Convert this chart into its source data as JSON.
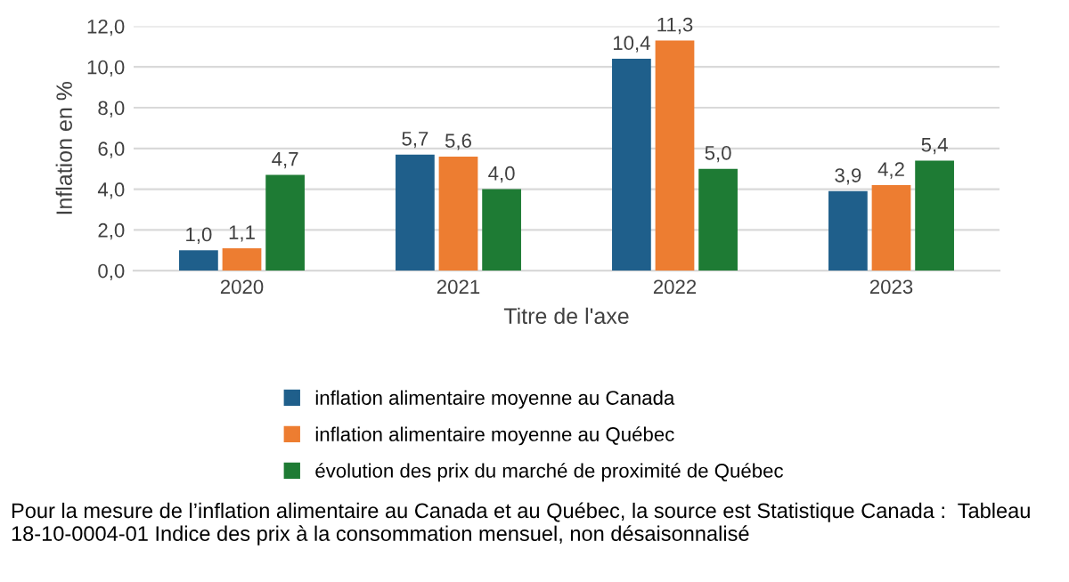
{
  "chart_data": {
    "type": "bar",
    "categories": [
      "2020",
      "2021",
      "2022",
      "2023"
    ],
    "series": [
      {
        "name": "inflation alimentaire moyenne au Canada",
        "color": "#1f5f8b",
        "values": [
          1.0,
          5.7,
          10.4,
          3.9
        ],
        "value_labels": [
          "1,0",
          "5,7",
          "10,4",
          "3,9"
        ]
      },
      {
        "name": "inflation alimentaire moyenne au Québec",
        "color": "#ed7d31",
        "values": [
          1.1,
          5.6,
          11.3,
          4.2
        ],
        "value_labels": [
          "1,1",
          "5,6",
          "11,3",
          "4,2"
        ]
      },
      {
        "name": "évolution des prix du marché de proximité de Québec",
        "color": "#1e7b34",
        "values": [
          4.7,
          4.0,
          5.0,
          5.4
        ],
        "value_labels": [
          "4,7",
          "4,0",
          "5,0",
          "5,4"
        ]
      }
    ],
    "xlabel": "Titre de l'axe",
    "ylabel": "Inflation en %",
    "ylim": [
      0,
      12
    ],
    "yticks": [
      {
        "value": 0,
        "label": "0,0"
      },
      {
        "value": 2,
        "label": "2,0"
      },
      {
        "value": 4,
        "label": "4,0"
      },
      {
        "value": 6,
        "label": "6,0"
      },
      {
        "value": 8,
        "label": "8,0"
      },
      {
        "value": 10,
        "label": "10,0"
      },
      {
        "value": 12,
        "label": "12,0"
      }
    ],
    "grid": "y",
    "legend": "bottom",
    "annotations": [
      "Pour la mesure de l’inflation alimentaire au Canada et au Québec, la source est Statistique Canada :  Tableau 18-10-0004-01 Indice des prix à la consommation mensuel, non désaisonnalisé"
    ]
  }
}
